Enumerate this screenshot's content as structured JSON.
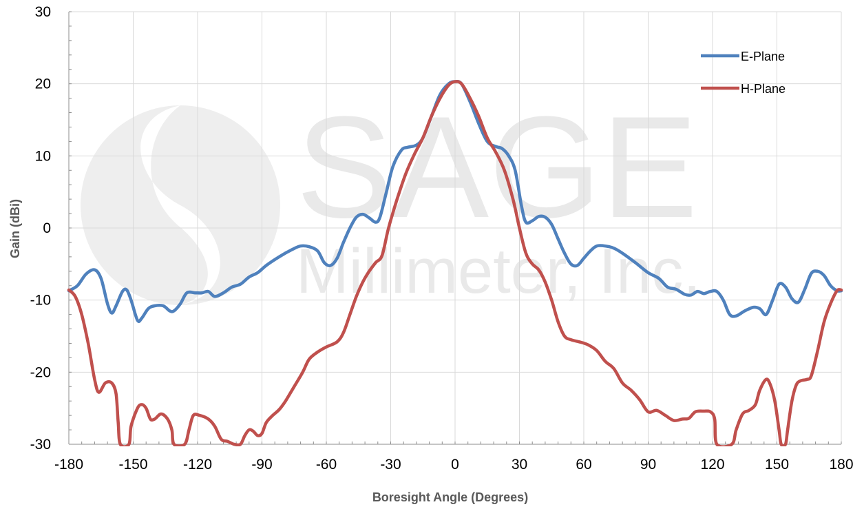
{
  "watermark": {
    "line1": "SAGE",
    "line2": "Millimeter, Inc."
  },
  "chart_data": {
    "type": "line",
    "xlabel": "Boresight Angle (Degrees)",
    "ylabel": "Gain (dBi)",
    "xlim": [
      -180,
      180
    ],
    "ylim": [
      -30,
      30
    ],
    "x_ticks": [
      -180,
      -150,
      -120,
      -90,
      -60,
      -30,
      0,
      30,
      60,
      90,
      120,
      150,
      180
    ],
    "y_ticks": [
      -30,
      -20,
      -10,
      0,
      10,
      20,
      30
    ],
    "grid": true,
    "legend_position": "top-right",
    "series": [
      {
        "name": "E-Plane",
        "color": "#4f81bd",
        "points": [
          [
            -180,
            -8.7
          ],
          [
            -176,
            -8
          ],
          [
            -172,
            -6.4
          ],
          [
            -168,
            -5.8
          ],
          [
            -165,
            -7
          ],
          [
            -162,
            -10.5
          ],
          [
            -160,
            -11.8
          ],
          [
            -158,
            -10.8
          ],
          [
            -155,
            -8.8
          ],
          [
            -153,
            -8.6
          ],
          [
            -151,
            -10
          ],
          [
            -148,
            -12.8
          ],
          [
            -146,
            -12.5
          ],
          [
            -143,
            -11.2
          ],
          [
            -140,
            -10.8
          ],
          [
            -136,
            -10.8
          ],
          [
            -133,
            -11.5
          ],
          [
            -131,
            -11.5
          ],
          [
            -128,
            -10.5
          ],
          [
            -125,
            -9
          ],
          [
            -121,
            -9
          ],
          [
            -118,
            -9
          ],
          [
            -115,
            -8.8
          ],
          [
            -112,
            -9.5
          ],
          [
            -108,
            -9
          ],
          [
            -104,
            -8.2
          ],
          [
            -100,
            -7.8
          ],
          [
            -96,
            -6.8
          ],
          [
            -92,
            -6.2
          ],
          [
            -88,
            -5.2
          ],
          [
            -82,
            -4
          ],
          [
            -76,
            -3
          ],
          [
            -72,
            -2.5
          ],
          [
            -68,
            -2.6
          ],
          [
            -64,
            -3.2
          ],
          [
            -61,
            -4.8
          ],
          [
            -58,
            -5.2
          ],
          [
            -55,
            -4.2
          ],
          [
            -52,
            -2
          ],
          [
            -49,
            0
          ],
          [
            -46,
            1.5
          ],
          [
            -43,
            1.9
          ],
          [
            -40,
            1.4
          ],
          [
            -37,
            0.8
          ],
          [
            -35,
            1.5
          ],
          [
            -32,
            5
          ],
          [
            -29,
            8.5
          ],
          [
            -25,
            10.8
          ],
          [
            -22,
            11.2
          ],
          [
            -18,
            11.5
          ],
          [
            -15,
            12.5
          ],
          [
            -11,
            15.5
          ],
          [
            -7,
            18.5
          ],
          [
            -3,
            20
          ],
          [
            0,
            20.3
          ],
          [
            3,
            20
          ],
          [
            7,
            17.5
          ],
          [
            11,
            14.5
          ],
          [
            15,
            12
          ],
          [
            19,
            11.3
          ],
          [
            22,
            11
          ],
          [
            25,
            10
          ],
          [
            28,
            8
          ],
          [
            31,
            3
          ],
          [
            33,
            0.8
          ],
          [
            36,
            1
          ],
          [
            39,
            1.6
          ],
          [
            42,
            1.5
          ],
          [
            45,
            0.5
          ],
          [
            48,
            -1.5
          ],
          [
            51,
            -3.5
          ],
          [
            54,
            -5
          ],
          [
            57,
            -5.2
          ],
          [
            60,
            -4.2
          ],
          [
            63,
            -3.2
          ],
          [
            66,
            -2.5
          ],
          [
            70,
            -2.5
          ],
          [
            74,
            -2.8
          ],
          [
            78,
            -3.5
          ],
          [
            84,
            -4.8
          ],
          [
            90,
            -6.2
          ],
          [
            95,
            -7
          ],
          [
            99,
            -8.2
          ],
          [
            103,
            -8.5
          ],
          [
            107,
            -9.2
          ],
          [
            110,
            -9.3
          ],
          [
            113,
            -8.8
          ],
          [
            116,
            -9.1
          ],
          [
            119,
            -8.8
          ],
          [
            122,
            -8.8
          ],
          [
            125,
            -10
          ],
          [
            128,
            -12
          ],
          [
            131,
            -12.2
          ],
          [
            135,
            -11.5
          ],
          [
            139,
            -11
          ],
          [
            142,
            -11.2
          ],
          [
            145,
            -12
          ],
          [
            148,
            -10
          ],
          [
            151,
            -7.8
          ],
          [
            154,
            -8.2
          ],
          [
            157,
            -9.8
          ],
          [
            160,
            -10.3
          ],
          [
            163,
            -8.5
          ],
          [
            166,
            -6.3
          ],
          [
            169,
            -6
          ],
          [
            172,
            -6.6
          ],
          [
            175,
            -8
          ],
          [
            178,
            -8.7
          ],
          [
            180,
            -8.7
          ]
        ]
      },
      {
        "name": "H-Plane",
        "color": "#c0504d",
        "points": [
          [
            -180,
            -8.6
          ],
          [
            -177,
            -9.5
          ],
          [
            -174,
            -12
          ],
          [
            -171,
            -16
          ],
          [
            -168,
            -21
          ],
          [
            -166,
            -22.8
          ],
          [
            -163,
            -21.5
          ],
          [
            -160,
            -21.5
          ],
          [
            -158,
            -23
          ],
          [
            -157,
            -27
          ],
          [
            -156,
            -30
          ],
          [
            -152,
            -30
          ],
          [
            -151,
            -27.5
          ],
          [
            -148,
            -25
          ],
          [
            -146,
            -24.5
          ],
          [
            -144,
            -25
          ],
          [
            -142,
            -26.5
          ],
          [
            -140,
            -26.5
          ],
          [
            -137,
            -25.8
          ],
          [
            -134,
            -26.5
          ],
          [
            -132,
            -28
          ],
          [
            -131,
            -30
          ],
          [
            -126,
            -30
          ],
          [
            -124,
            -28
          ],
          [
            -122,
            -26
          ],
          [
            -119,
            -26
          ],
          [
            -115,
            -26.5
          ],
          [
            -112,
            -27.5
          ],
          [
            -109,
            -29.3
          ],
          [
            -106,
            -29.6
          ],
          [
            -103,
            -30
          ],
          [
            -100,
            -30
          ],
          [
            -98,
            -28.8
          ],
          [
            -96,
            -28
          ],
          [
            -94,
            -28.2
          ],
          [
            -92,
            -28.8
          ],
          [
            -90,
            -28.5
          ],
          [
            -88,
            -27
          ],
          [
            -85,
            -26
          ],
          [
            -82,
            -25.2
          ],
          [
            -79,
            -24
          ],
          [
            -75,
            -22
          ],
          [
            -71,
            -20
          ],
          [
            -68,
            -18.2
          ],
          [
            -64,
            -17.2
          ],
          [
            -60,
            -16.5
          ],
          [
            -55,
            -15.8
          ],
          [
            -52,
            -14.5
          ],
          [
            -49,
            -12
          ],
          [
            -46,
            -9.5
          ],
          [
            -43,
            -7.5
          ],
          [
            -40,
            -6
          ],
          [
            -37,
            -4.8
          ],
          [
            -34,
            -3.8
          ],
          [
            -31,
            0
          ],
          [
            -27,
            4
          ],
          [
            -23,
            7.5
          ],
          [
            -19,
            10.2
          ],
          [
            -15,
            12.5
          ],
          [
            -11,
            15.5
          ],
          [
            -7,
            18
          ],
          [
            -3,
            19.8
          ],
          [
            0,
            20.3
          ],
          [
            3,
            20
          ],
          [
            7,
            18
          ],
          [
            11,
            15.5
          ],
          [
            15,
            12.5
          ],
          [
            19,
            10.5
          ],
          [
            23,
            8
          ],
          [
            27,
            4
          ],
          [
            30,
            0
          ],
          [
            33,
            -3.5
          ],
          [
            36,
            -5
          ],
          [
            39,
            -5.8
          ],
          [
            42,
            -7.5
          ],
          [
            45,
            -10
          ],
          [
            48,
            -13
          ],
          [
            51,
            -15
          ],
          [
            54,
            -15.5
          ],
          [
            58,
            -15.8
          ],
          [
            62,
            -16.2
          ],
          [
            66,
            -17
          ],
          [
            70,
            -18.5
          ],
          [
            74,
            -19.5
          ],
          [
            78,
            -21.5
          ],
          [
            82,
            -22.5
          ],
          [
            86,
            -23.8
          ],
          [
            90,
            -25.5
          ],
          [
            94,
            -25.3
          ],
          [
            98,
            -26
          ],
          [
            102,
            -26.7
          ],
          [
            106,
            -26.5
          ],
          [
            109,
            -26.4
          ],
          [
            112,
            -25.5
          ],
          [
            116,
            -25.4
          ],
          [
            119,
            -25.5
          ],
          [
            121,
            -26.5
          ],
          [
            122,
            -30
          ],
          [
            129,
            -30
          ],
          [
            131,
            -28
          ],
          [
            134,
            -25.8
          ],
          [
            137,
            -25.3
          ],
          [
            140,
            -24.5
          ],
          [
            142,
            -22.5
          ],
          [
            145,
            -21
          ],
          [
            147,
            -21.8
          ],
          [
            149,
            -24
          ],
          [
            151,
            -28
          ],
          [
            152,
            -30
          ],
          [
            154,
            -30
          ],
          [
            155,
            -28
          ],
          [
            157,
            -24
          ],
          [
            159,
            -21.8
          ],
          [
            161,
            -21.2
          ],
          [
            164,
            -21
          ],
          [
            166,
            -20.5
          ],
          [
            169,
            -17
          ],
          [
            172,
            -13
          ],
          [
            175,
            -10.5
          ],
          [
            178,
            -8.7
          ],
          [
            180,
            -8.6
          ]
        ]
      }
    ]
  }
}
